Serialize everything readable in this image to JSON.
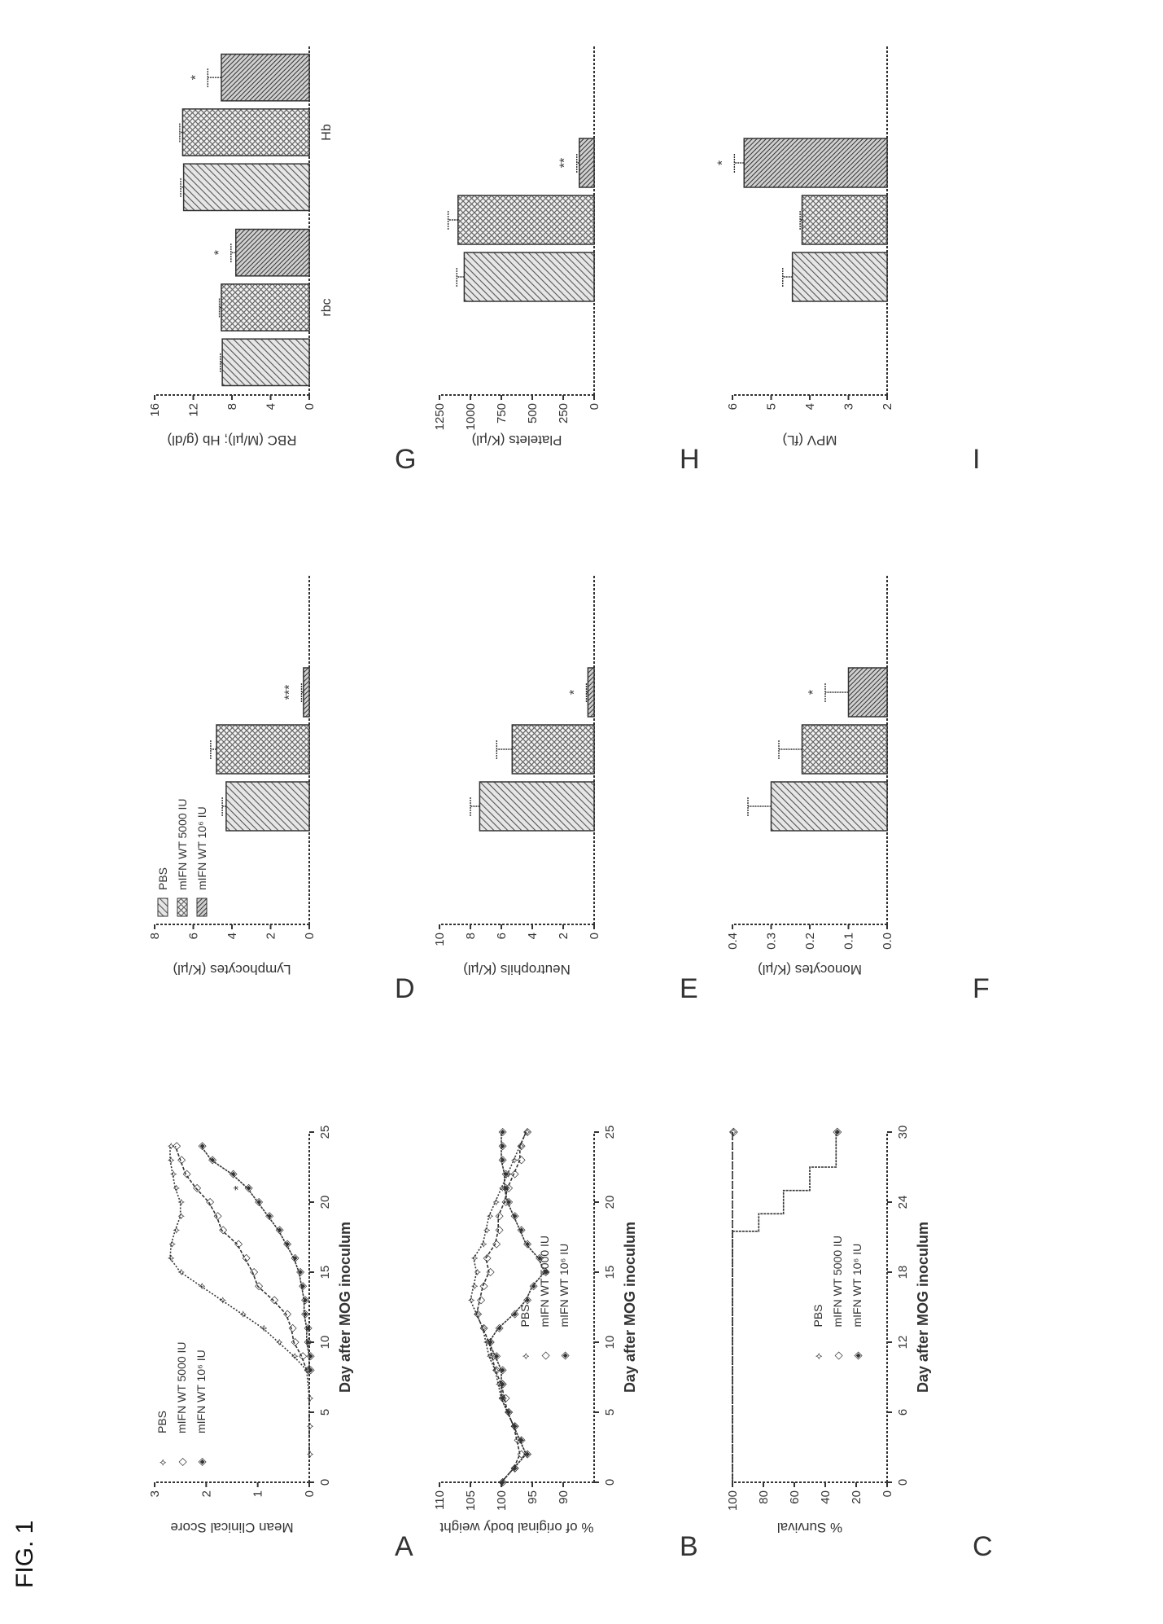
{
  "figure": {
    "title": "FIG. 1"
  },
  "chart_data": [
    {
      "panel": "A",
      "type": "line",
      "xlabel": "Day after MOG inoculum",
      "ylabel": "Mean Clinical Score",
      "xlim": [
        0,
        25
      ],
      "ylim": [
        0,
        3
      ],
      "xticks": [
        "0",
        "5",
        "10",
        "15",
        "20",
        "25"
      ],
      "yticks": [
        "0",
        "1",
        "2",
        "3"
      ],
      "legend": "top-left",
      "series": [
        {
          "name": "PBS",
          "x": [
            2,
            4,
            6,
            8,
            9,
            10,
            11,
            12,
            13,
            14,
            15,
            16,
            17,
            18,
            19,
            20,
            21,
            22,
            23,
            24
          ],
          "y": [
            0,
            0,
            0,
            0.05,
            0.3,
            0.6,
            0.9,
            1.3,
            1.7,
            2.1,
            2.5,
            2.7,
            2.68,
            2.6,
            2.5,
            2.5,
            2.6,
            2.65,
            2.7,
            2.7
          ]
        },
        {
          "name": "mIFN WT 5000 IU",
          "x": [
            8,
            9,
            10,
            11,
            12,
            13,
            14,
            15,
            16,
            17,
            18,
            19,
            20,
            21,
            22,
            23,
            24
          ],
          "y": [
            0.05,
            0.15,
            0.3,
            0.35,
            0.45,
            0.7,
            1.0,
            1.1,
            1.25,
            1.4,
            1.7,
            1.8,
            1.95,
            2.2,
            2.4,
            2.5,
            2.6
          ]
        },
        {
          "name": "mIFN WT 10^6 IU",
          "x": [
            8,
            9,
            10,
            11,
            12,
            13,
            14,
            15,
            16,
            17,
            18,
            19,
            20,
            21,
            22,
            23,
            24
          ],
          "y": [
            0,
            0,
            0.05,
            0.05,
            0.1,
            0.1,
            0.15,
            0.2,
            0.3,
            0.45,
            0.6,
            0.8,
            1.0,
            1.2,
            1.5,
            1.9,
            2.1
          ],
          "annotation": {
            "text": "*",
            "x": 21,
            "y": 1.2
          }
        }
      ]
    },
    {
      "panel": "B",
      "type": "line",
      "xlabel": "Day after MOG inoculum",
      "ylabel": "% of original body weight",
      "xlim": [
        0,
        25
      ],
      "ylim": [
        85,
        110
      ],
      "xticks": [
        "0",
        "5",
        "10",
        "15",
        "20",
        "25"
      ],
      "yticks": [
        "90",
        "95",
        "100",
        "105",
        "110"
      ],
      "legend": "bottom-center",
      "series": [
        {
          "name": "PBS",
          "x": [
            0,
            1,
            2,
            3,
            4,
            5,
            6,
            7,
            8,
            9,
            10,
            11,
            12,
            13,
            14,
            15,
            16,
            17,
            18,
            19,
            20,
            21,
            22,
            23,
            24,
            25
          ],
          "y": [
            100,
            98,
            96,
            97,
            98,
            99,
            100,
            100.5,
            101,
            102,
            102.5,
            103,
            104,
            105,
            104.5,
            104,
            104.5,
            103,
            102.5,
            102,
            101,
            100,
            99,
            98,
            97,
            96
          ]
        },
        {
          "name": "mIFN WT 5000 IU",
          "x": [
            0,
            1,
            2,
            3,
            4,
            5,
            6,
            7,
            8,
            9,
            10,
            11,
            12,
            13,
            14,
            15,
            16,
            17,
            18,
            19,
            20,
            21,
            22,
            23,
            24,
            25
          ],
          "y": [
            100,
            98,
            97,
            97.5,
            98,
            99,
            99.5,
            100,
            101,
            101.5,
            102,
            103,
            104,
            103.5,
            103,
            102,
            102.5,
            101,
            100.5,
            100.5,
            99.5,
            99,
            98,
            97,
            97,
            96
          ]
        },
        {
          "name": "mIFN WT 10^6 IU",
          "x": [
            0,
            1,
            2,
            3,
            4,
            5,
            6,
            7,
            8,
            9,
            10,
            11,
            12,
            13,
            14,
            15,
            16,
            17,
            18,
            19,
            20,
            21,
            22,
            23,
            24,
            25
          ],
          "y": [
            100,
            98,
            96,
            97,
            98,
            99,
            100,
            100,
            100,
            101,
            102,
            100.5,
            98,
            96,
            95,
            93,
            94,
            96,
            97,
            98,
            99,
            99.5,
            99.5,
            100,
            100,
            100
          ]
        }
      ]
    },
    {
      "panel": "C",
      "type": "line",
      "xlabel": "Day after MOG inoculum",
      "ylabel": "% Survival",
      "xlim": [
        0,
        30
      ],
      "ylim": [
        0,
        100
      ],
      "xticks": [
        "0",
        "6",
        "12",
        "18",
        "24",
        "30"
      ],
      "yticks": [
        "0",
        "20",
        "40",
        "60",
        "80",
        "100"
      ],
      "legend": "bottom-center",
      "series": [
        {
          "name": "PBS",
          "x": [
            0,
            30
          ],
          "y": [
            100,
            100
          ]
        },
        {
          "name": "mIFN WT 5000 IU",
          "x": [
            0,
            30
          ],
          "y": [
            100,
            100
          ]
        },
        {
          "name": "mIFN WT 10^6 IU",
          "x": [
            0,
            21.5,
            21.5,
            23,
            23,
            25,
            25,
            27,
            27,
            30
          ],
          "y": [
            100,
            100,
            83,
            83,
            67,
            67,
            50,
            50,
            33,
            33
          ]
        }
      ]
    },
    {
      "panel": "D",
      "type": "bar",
      "ylabel": "Lymphocytes (K/µl)",
      "ylim": [
        0,
        8
      ],
      "yticks": [
        "0",
        "2",
        "4",
        "6",
        "8"
      ],
      "legend": "top-left",
      "categories": [
        ""
      ],
      "series": [
        {
          "name": "PBS",
          "values": [
            4.3
          ],
          "error": [
            0.2
          ],
          "annotation": ""
        },
        {
          "name": "mIFN WT 5000 IU",
          "values": [
            4.8
          ],
          "error": [
            0.3
          ],
          "annotation": ""
        },
        {
          "name": "mIFN WT 10^6 IU",
          "values": [
            0.3
          ],
          "error": [
            0.1
          ],
          "annotation": "***"
        }
      ]
    },
    {
      "panel": "E",
      "type": "bar",
      "ylabel": "Neutrophils (K/µl)",
      "ylim": [
        0,
        10
      ],
      "yticks": [
        "0",
        "2",
        "4",
        "6",
        "8",
        "10"
      ],
      "categories": [
        ""
      ],
      "series": [
        {
          "name": "PBS",
          "values": [
            7.4
          ],
          "error": [
            0.6
          ],
          "annotation": ""
        },
        {
          "name": "mIFN WT 5000 IU",
          "values": [
            5.3
          ],
          "error": [
            1.0
          ],
          "annotation": ""
        },
        {
          "name": "mIFN WT 10^6 IU",
          "values": [
            0.4
          ],
          "error": [
            0.1
          ],
          "annotation": "*"
        }
      ]
    },
    {
      "panel": "F",
      "type": "bar",
      "ylabel": "Monocytes (K/µl)",
      "ylim": [
        0,
        0.4
      ],
      "yticks": [
        "0.0",
        "0.1",
        "0.2",
        "0.3",
        "0.4"
      ],
      "categories": [
        ""
      ],
      "series": [
        {
          "name": "PBS",
          "values": [
            0.3
          ],
          "error": [
            0.06
          ],
          "annotation": ""
        },
        {
          "name": "mIFN WT 5000 IU",
          "values": [
            0.22
          ],
          "error": [
            0.06
          ],
          "annotation": ""
        },
        {
          "name": "mIFN WT 10^6 IU",
          "values": [
            0.1
          ],
          "error": [
            0.06
          ],
          "annotation": "*"
        }
      ]
    },
    {
      "panel": "G",
      "type": "bar",
      "ylabel": "RBC (M/µl); Hb (g/dl)",
      "ylim": [
        0,
        16
      ],
      "yticks": [
        "0",
        "4",
        "8",
        "12",
        "16"
      ],
      "categories": [
        "rbc",
        "Hb"
      ],
      "series": [
        {
          "name": "PBS",
          "values": [
            9.0,
            13.0
          ],
          "error": [
            0.2,
            0.3
          ],
          "annotation": [
            "",
            ""
          ]
        },
        {
          "name": "mIFN WT 5000 IU",
          "values": [
            9.1,
            13.1
          ],
          "error": [
            0.2,
            0.3
          ],
          "annotation": [
            "",
            ""
          ]
        },
        {
          "name": "mIFN WT 10^6 IU",
          "values": [
            7.6,
            9.1
          ],
          "error": [
            0.5,
            1.4
          ],
          "annotation": [
            "*",
            "*"
          ]
        }
      ]
    },
    {
      "panel": "H",
      "type": "bar",
      "ylabel": "Platelets (K/µl)",
      "ylim": [
        0,
        1250
      ],
      "yticks": [
        "0",
        "250",
        "500",
        "750",
        "1000",
        "1250"
      ],
      "categories": [
        ""
      ],
      "series": [
        {
          "name": "PBS",
          "values": [
            1050
          ],
          "error": [
            60
          ],
          "annotation": ""
        },
        {
          "name": "mIFN WT 5000 IU",
          "values": [
            1100
          ],
          "error": [
            80
          ],
          "annotation": ""
        },
        {
          "name": "mIFN WT 10^6 IU",
          "values": [
            120
          ],
          "error": [
            20
          ],
          "annotation": "**"
        }
      ]
    },
    {
      "panel": "I",
      "type": "bar",
      "ylabel": "MPV (fL)",
      "ylim": [
        2,
        6
      ],
      "yticks": [
        "2",
        "3",
        "4",
        "5",
        "6"
      ],
      "categories": [
        ""
      ],
      "series": [
        {
          "name": "PBS",
          "values": [
            4.45
          ],
          "error": [
            0.25
          ],
          "annotation": ""
        },
        {
          "name": "mIFN WT 5000 IU",
          "values": [
            4.2
          ],
          "error": [
            0.05
          ],
          "annotation": ""
        },
        {
          "name": "mIFN WT 10^6 IU",
          "values": [
            5.7
          ],
          "error": [
            0.25
          ],
          "annotation": "*"
        }
      ]
    }
  ],
  "colors": {
    "ink": "#333333",
    "fill": "#cfcfcf"
  }
}
